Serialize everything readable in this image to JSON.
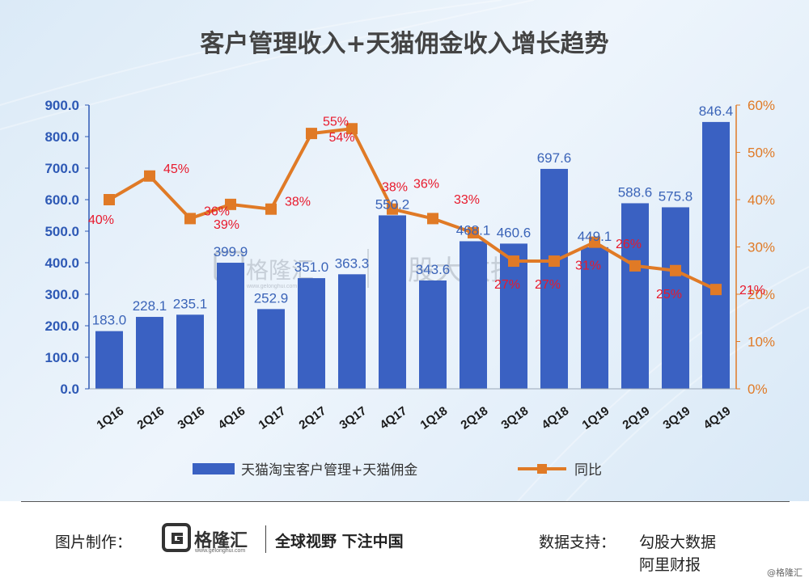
{
  "chart_data": {
    "type": "bar+line",
    "title": "客户管理收入+天猫佣金收入增长趋势",
    "categories": [
      "1Q16",
      "2Q16",
      "3Q16",
      "4Q16",
      "1Q17",
      "2Q17",
      "3Q17",
      "4Q17",
      "1Q18",
      "2Q18",
      "3Q18",
      "4Q18",
      "1Q19",
      "2Q19",
      "3Q19",
      "4Q19"
    ],
    "bar_labels": [
      "183.0",
      "228.1",
      "235.1",
      "399.9",
      "252.9",
      "351.0",
      "363.3",
      "550.2",
      "343.6",
      "468.1",
      "460.6",
      "697.6",
      "449.1",
      "588.6",
      "575.8",
      "846.4"
    ],
    "series": [
      {
        "name": "天猫淘宝客户管理+天猫佣金",
        "type": "bar",
        "axis": "left",
        "color": "#3a61c2",
        "values": [
          183.0,
          228.1,
          235.1,
          399.9,
          252.9,
          351.0,
          363.3,
          550.2,
          343.6,
          468.1,
          460.6,
          697.6,
          449.1,
          588.6,
          575.8,
          846.4
        ]
      },
      {
        "name": "同比",
        "type": "line",
        "axis": "right",
        "color": "#e07a26",
        "values": [
          40,
          45,
          36,
          39,
          38,
          54,
          55,
          38,
          36,
          33,
          27,
          27,
          31,
          26,
          25,
          21
        ],
        "labels": [
          "40%",
          "45%",
          "36%",
          "39%",
          "38%",
          "54%",
          "55%",
          "38%",
          "36%",
          "33%",
          "27%",
          "27%",
          "31%",
          "26%",
          "25%",
          "21%"
        ]
      }
    ],
    "y_left": {
      "ylim": [
        0,
        900
      ],
      "ticks": [
        "0.0",
        "100.0",
        "200.0",
        "300.0",
        "400.0",
        "500.0",
        "600.0",
        "700.0",
        "800.0",
        "900.0"
      ]
    },
    "y_right": {
      "ylim": [
        0,
        60
      ],
      "ticks": [
        "0%",
        "10%",
        "20%",
        "30%",
        "40%",
        "50%",
        "60%"
      ]
    },
    "grid": false,
    "legend_position": "bottom",
    "label_color": "#e8192c"
  },
  "watermark": {
    "brand": "格隆汇",
    "url": "www.gelonghui.com",
    "text": "勾股大数据"
  },
  "footer": {
    "credit_label": "图片制作：",
    "logo_text": "格隆汇",
    "logo_url": "www.gelonghui.com",
    "slogan": "全球视野 下注中国",
    "support_label": "数据支持：",
    "support_line1": "勾股大数据",
    "support_line2": "阿里财报",
    "corner_mark": "@格隆汇"
  }
}
